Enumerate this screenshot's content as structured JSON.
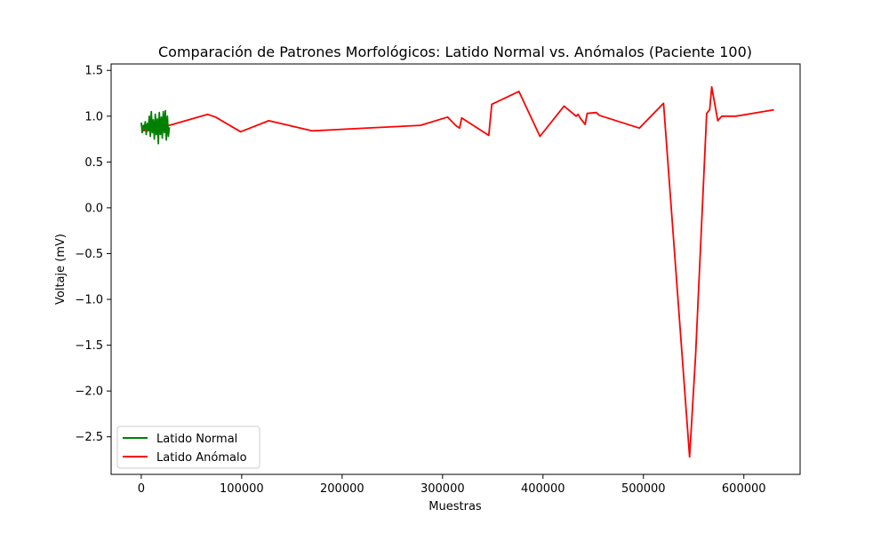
{
  "chart_data": {
    "type": "line",
    "title": "Comparación de Patrones Morfológicos: Latido Normal vs. Anómalos (Paciente 100)",
    "xlabel": "Muestras",
    "ylabel": "Voltaje (mV)",
    "xlim": [
      -30000,
      656000
    ],
    "ylim": [
      -2.91,
      1.57
    ],
    "xticks": [
      0,
      100000,
      200000,
      300000,
      400000,
      500000,
      600000
    ],
    "xtick_labels": [
      "0",
      "100000",
      "200000",
      "300000",
      "400000",
      "500000",
      "600000"
    ],
    "yticks": [
      1.5,
      1.0,
      0.5,
      0.0,
      -0.5,
      -1.0,
      -1.5,
      -2.0,
      -2.5
    ],
    "ytick_labels": [
      "1.5",
      "1.0",
      "0.5",
      "0.0",
      "−0.5",
      "−1.0",
      "−1.5",
      "−2.0",
      "−2.5"
    ],
    "grid": false,
    "legend_position": "lower-left",
    "series": [
      {
        "name": "Latido Normal",
        "color": "#008000",
        "x": [
          0,
          1000,
          2000,
          3000,
          4000,
          5000,
          6000,
          7000,
          8000,
          9000,
          10000,
          11000,
          12000,
          13000,
          14000,
          15000,
          16000,
          17000,
          18000,
          19000,
          20000,
          21000,
          22000,
          23000,
          24000,
          25000,
          26000,
          27000,
          28000
        ],
        "y": [
          0.93,
          0.82,
          0.9,
          0.86,
          0.94,
          0.8,
          0.92,
          0.84,
          1.0,
          0.78,
          1.05,
          0.82,
          0.96,
          0.75,
          1.02,
          0.8,
          0.97,
          0.7,
          1.04,
          0.8,
          0.99,
          0.76,
          1.05,
          0.82,
          1.06,
          0.74,
          1.0,
          0.78,
          0.88
        ]
      },
      {
        "name": "Latido Anómalo",
        "color": "#ff0000",
        "x": [
          0,
          15000,
          28000,
          66000,
          74000,
          99000,
          127000,
          170000,
          278000,
          305000,
          313000,
          317000,
          319000,
          346000,
          349000,
          376000,
          397000,
          421000,
          433000,
          435000,
          437000,
          442000,
          444000,
          453000,
          456000,
          496000,
          520000,
          546000,
          552000,
          563000,
          566000,
          568000,
          574000,
          578000,
          592000,
          630000
        ],
        "y": [
          0.84,
          0.86,
          0.9,
          1.02,
          0.99,
          0.83,
          0.95,
          0.84,
          0.9,
          0.99,
          0.9,
          0.87,
          0.98,
          0.79,
          1.13,
          1.27,
          0.78,
          1.11,
          1.0,
          1.02,
          0.98,
          0.91,
          1.03,
          1.04,
          1.01,
          0.87,
          1.14,
          -2.72,
          -1.6,
          1.03,
          1.07,
          1.32,
          0.95,
          1.0,
          1.0,
          1.07
        ]
      }
    ]
  }
}
